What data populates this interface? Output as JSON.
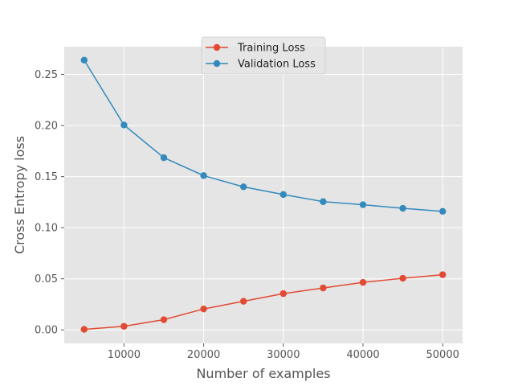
{
  "chart_data": {
    "type": "line",
    "title": "",
    "xlabel": "Number of examples",
    "ylabel": "Cross Entropy loss",
    "x": [
      5000,
      10000,
      15000,
      20000,
      25000,
      30000,
      35000,
      40000,
      45000,
      50000
    ],
    "xlim": [
      2500,
      52500
    ],
    "ylim": [
      -0.0132,
      0.2772
    ],
    "xticks": [
      10000,
      20000,
      30000,
      40000,
      50000
    ],
    "xtick_labels": [
      "10000",
      "20000",
      "30000",
      "40000",
      "50000"
    ],
    "yticks": [
      0.0,
      0.05,
      0.1,
      0.15,
      0.2,
      0.25
    ],
    "ytick_labels": [
      "0.00",
      "0.05",
      "0.10",
      "0.15",
      "0.20",
      "0.25"
    ],
    "grid": true,
    "legend_position": "top-center",
    "series": [
      {
        "name": "Training Loss",
        "color": "#E24A33",
        "values": [
          0.0005,
          0.0035,
          0.01,
          0.0205,
          0.028,
          0.0355,
          0.041,
          0.0465,
          0.0505,
          0.054
        ]
      },
      {
        "name": "Validation Loss",
        "color": "#348ABD",
        "values": [
          0.264,
          0.2005,
          0.1685,
          0.151,
          0.14,
          0.1325,
          0.1255,
          0.1225,
          0.119,
          0.116
        ]
      }
    ]
  }
}
